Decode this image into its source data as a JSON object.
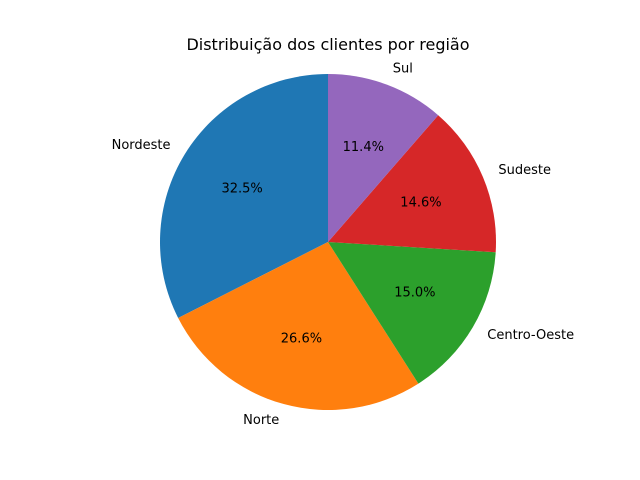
{
  "chart_data": {
    "type": "pie",
    "title": "Distribuição dos clientes por região",
    "labels": [
      "Nordeste",
      "Norte",
      "Centro-Oeste",
      "Sudeste",
      "Sul"
    ],
    "values": [
      32.5,
      26.6,
      15.0,
      14.6,
      11.4
    ],
    "value_labels": [
      "32.5%",
      "26.6%",
      "15.0%",
      "14.6%",
      "11.4%"
    ],
    "colors": [
      "#1f77b4",
      "#ff7f0e",
      "#2ca02c",
      "#d62728",
      "#9467bd"
    ],
    "start_angle_deg": 90,
    "direction": "counterclockwise",
    "legend": "none"
  }
}
